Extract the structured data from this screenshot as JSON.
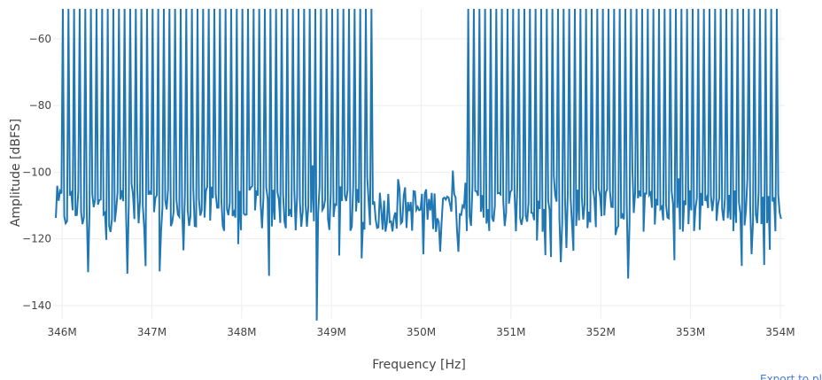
{
  "chart_data": {
    "type": "line",
    "xlabel": "Frequency [Hz]",
    "ylabel": "Amplitude [dBFS]",
    "xlim": [
      345900000,
      354050000
    ],
    "ylim": [
      -144,
      -51
    ],
    "x_ticks": [
      {
        "value": 346000000,
        "label": "346M"
      },
      {
        "value": 347000000,
        "label": "347M"
      },
      {
        "value": 348000000,
        "label": "348M"
      },
      {
        "value": 349000000,
        "label": "349M"
      },
      {
        "value": 350000000,
        "label": "350M"
      },
      {
        "value": 351000000,
        "label": "351M"
      },
      {
        "value": 352000000,
        "label": "352M"
      },
      {
        "value": 353000000,
        "label": "353M"
      },
      {
        "value": 354000000,
        "label": "354M"
      }
    ],
    "y_ticks": [
      {
        "value": -60,
        "label": "−60"
      },
      {
        "value": -80,
        "label": "−80"
      },
      {
        "value": -100,
        "label": "−100"
      },
      {
        "value": -120,
        "label": "−120"
      },
      {
        "value": -140,
        "label": "−140"
      }
    ],
    "grid": true,
    "line_color": "#1f77b4",
    "series": [
      {
        "description": "FFT spectrum with regularly spaced carrier tones",
        "tone_level_dbfs": -47,
        "tone_spacing_hz": 62500,
        "tone_band_1_hz": [
          345950000,
          349480000
        ],
        "tone_band_2_hz": [
          350520000,
          354020000
        ],
        "noise_floor_dbfs": -111,
        "min_dbfs": -144.5
      }
    ]
  },
  "export_link": {
    "label": "Export to plot.ly »"
  }
}
